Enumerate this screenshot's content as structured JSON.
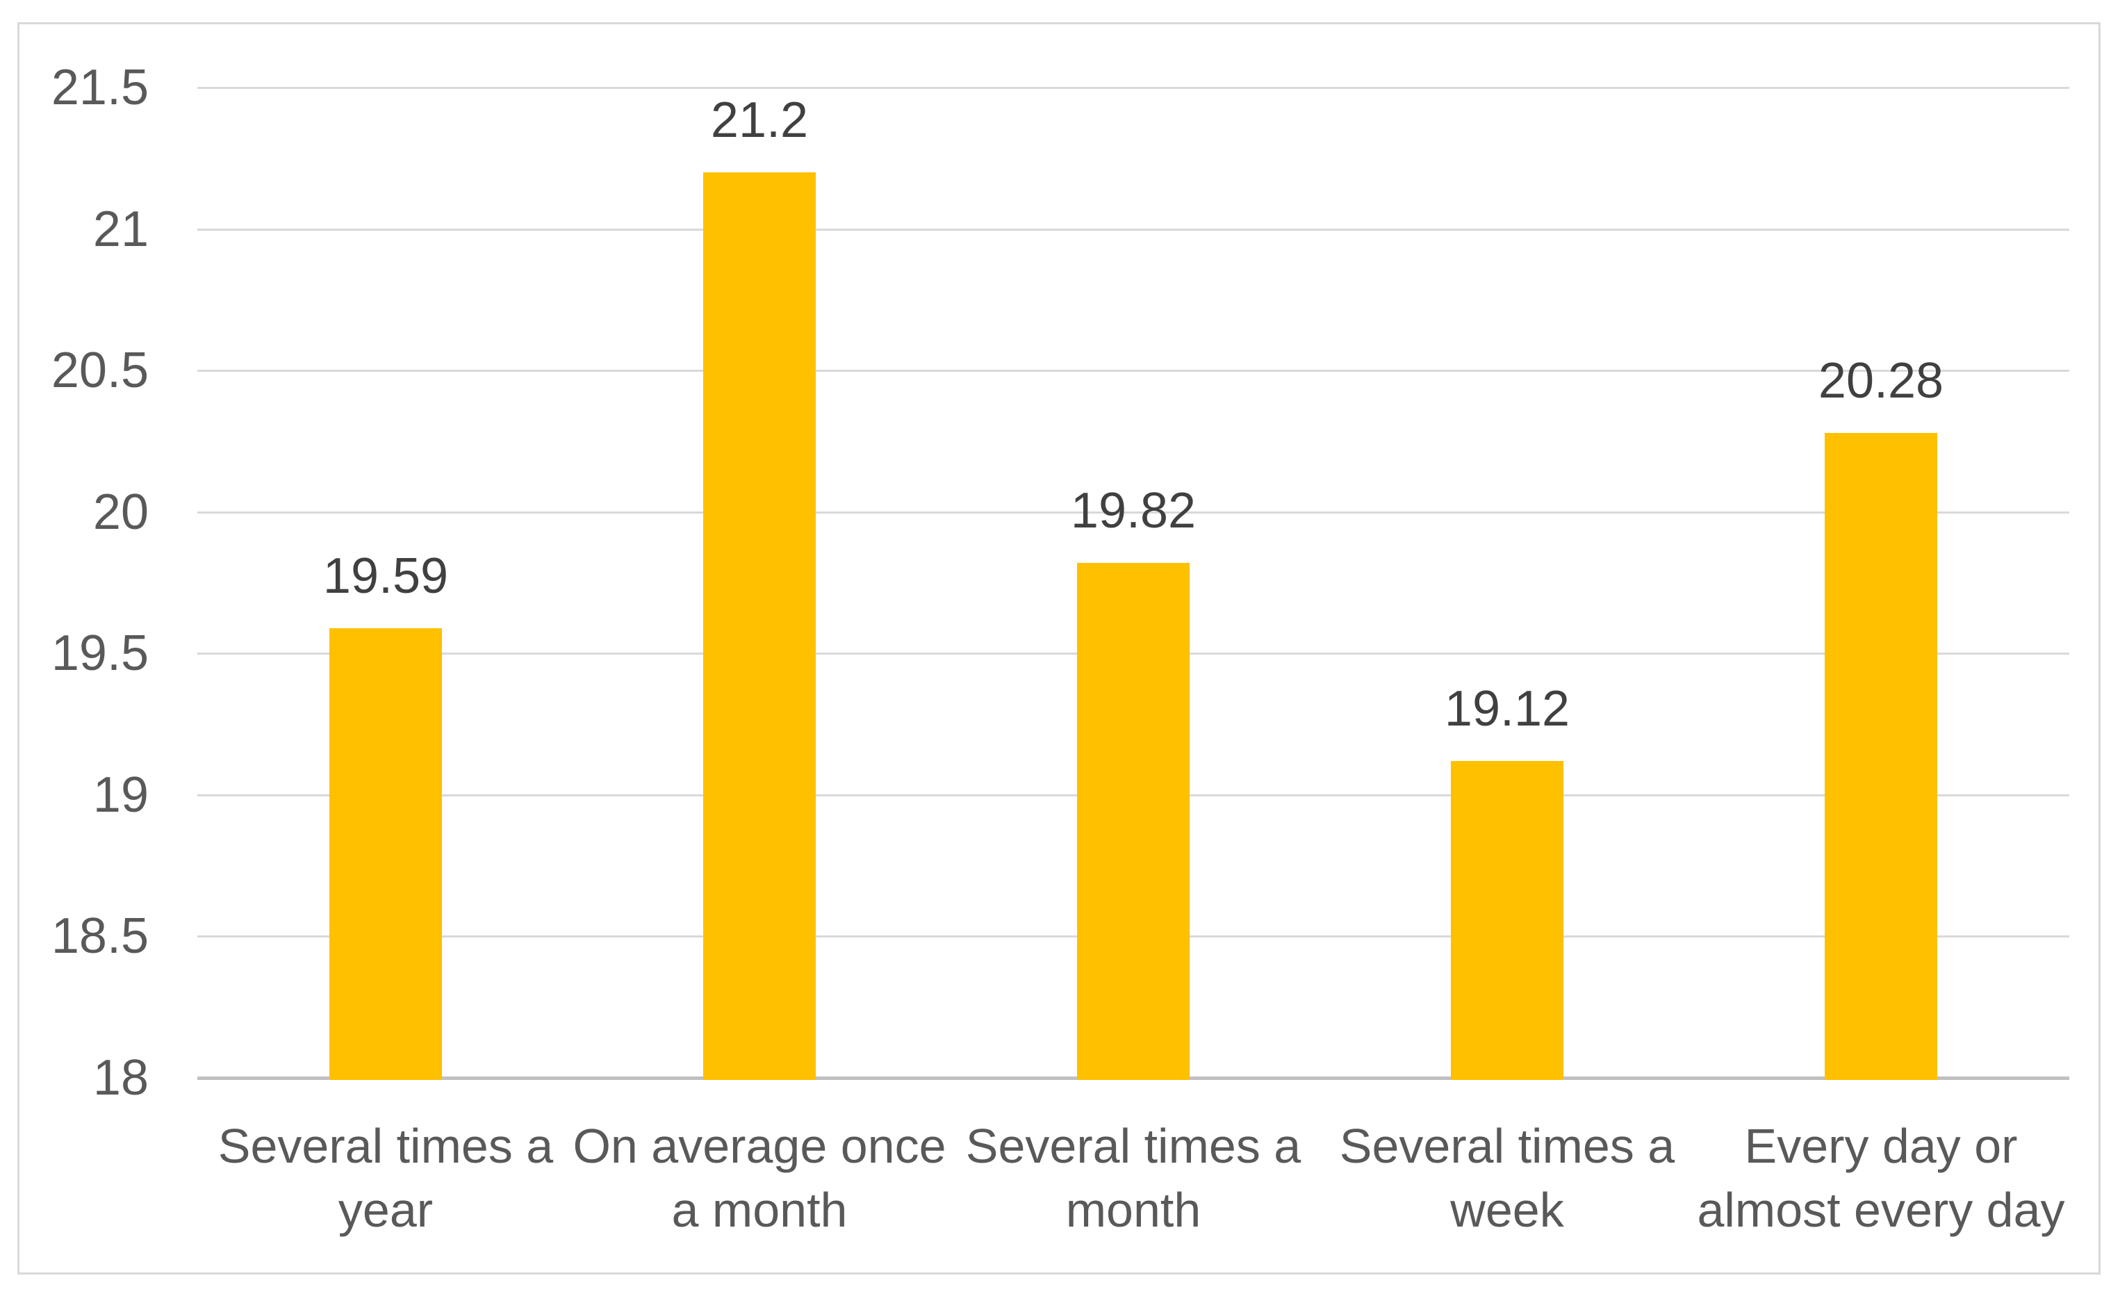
{
  "chart_data": {
    "type": "bar",
    "title": "",
    "xlabel": "",
    "ylabel": "",
    "categories": [
      "Several times a\nyear",
      "On average once\na month",
      "Several times a\nmonth",
      "Several times a\nweek",
      "Every day or\nalmost every day"
    ],
    "values": [
      19.59,
      21.2,
      19.82,
      19.12,
      20.28
    ],
    "data_labels": [
      "19.59",
      "21.2",
      "19.82",
      "19.12",
      "20.28"
    ],
    "ylim": [
      18,
      21.5
    ],
    "ytick_step": 0.5,
    "ytick_labels": [
      "21.5",
      "21",
      "20.5",
      "20",
      "19.5",
      "19",
      "18.5",
      "18"
    ],
    "grid": "horizontal",
    "legend": "none",
    "colors": {
      "bar": "#FFC000",
      "gridline": "#D9D9D9",
      "axis_line": "#C0C0C0",
      "tick_text": "#595959",
      "data_label_text": "#404040",
      "category_text": "#595959",
      "frame_border": "#D9D9D9",
      "background": "#FFFFFF"
    }
  }
}
